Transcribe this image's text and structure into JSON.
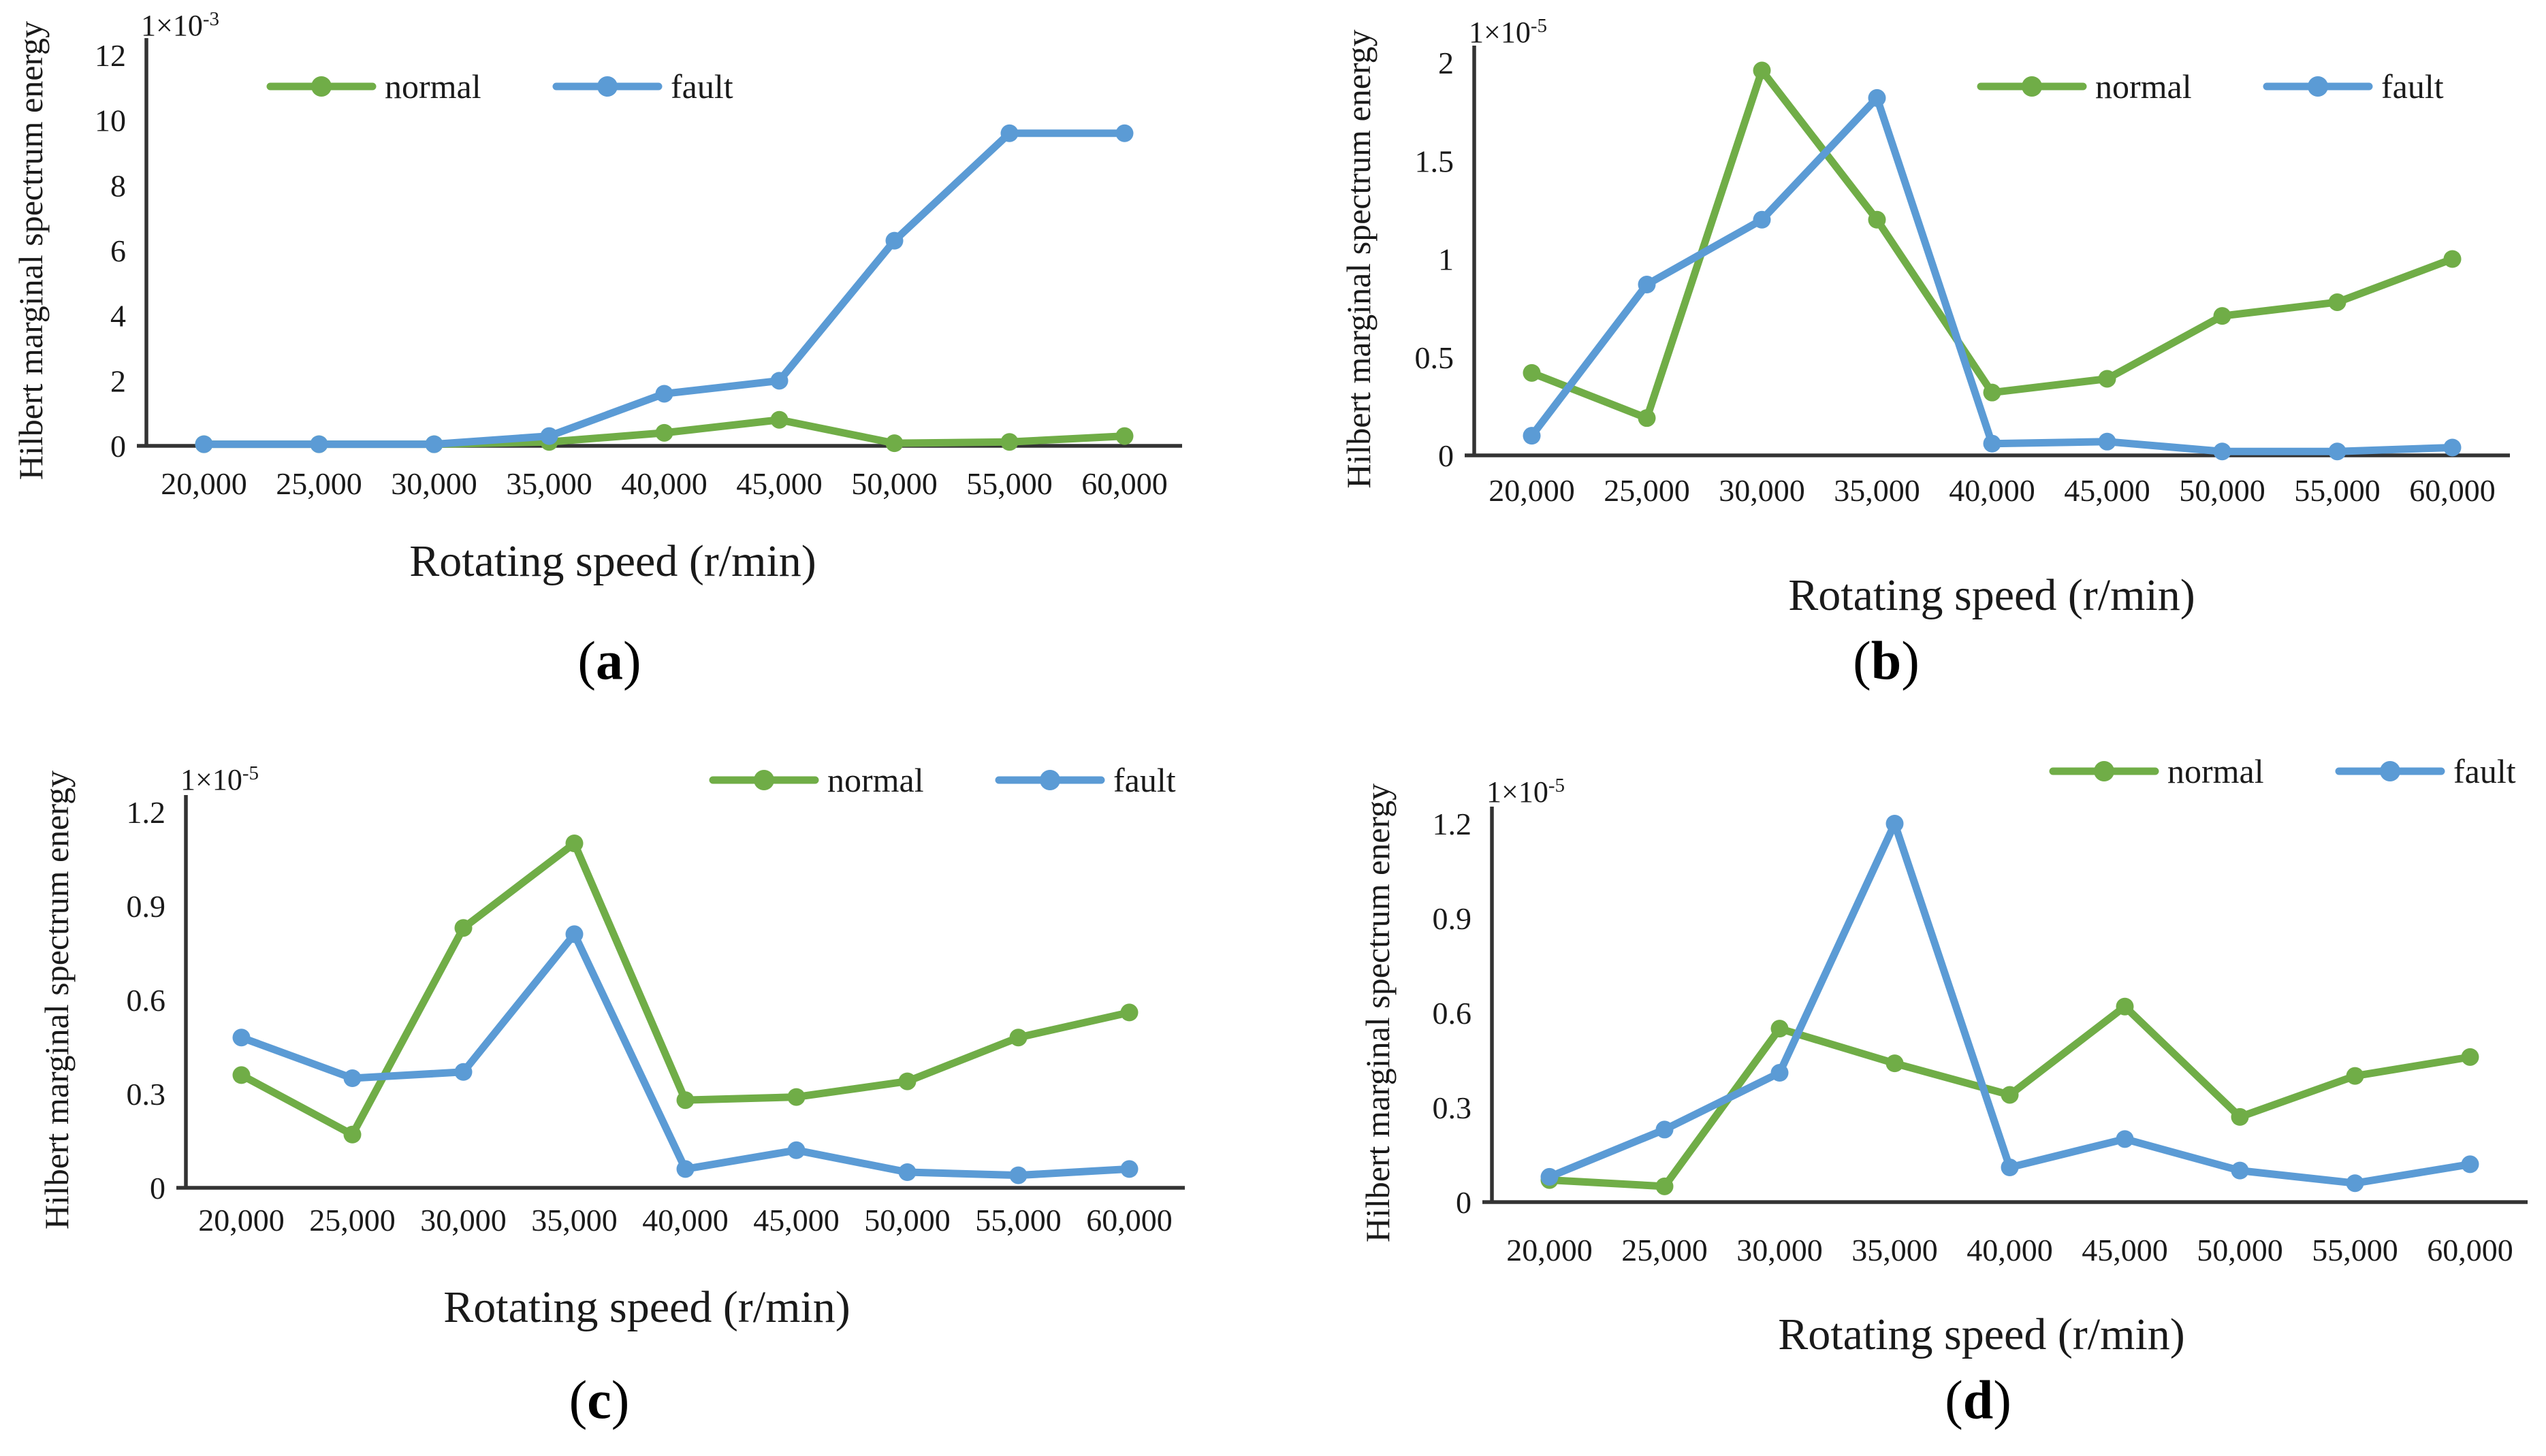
{
  "figure": {
    "background": "#ffffff",
    "description_labels": [
      "(a)",
      "(b)",
      "(c)",
      "(d)"
    ]
  },
  "colors": {
    "normal": "#70AD47",
    "fault": "#5B9BD5",
    "axis": "#333333",
    "text": "#1a1a1a"
  },
  "chart_data": [
    {
      "type": "line",
      "panel_label": {
        "open": "(",
        "letter": "a",
        "close": ")"
      },
      "ylabel": "Hilbert marginal spectrum energy",
      "xlabel": "Rotating speed (r/min)",
      "scale_label": {
        "base": "1×10",
        "exponent": "-3"
      },
      "categories": [
        "20,000",
        "25,000",
        "30,000",
        "35,000",
        "40,000",
        "45,000",
        "50,000",
        "55,000",
        "60,000"
      ],
      "ylim": [
        0,
        12
      ],
      "yticks": [
        0,
        2,
        4,
        6,
        8,
        10,
        12
      ],
      "ytick_labels": [
        "0",
        "2",
        "4",
        "6",
        "8",
        "10",
        "12"
      ],
      "grid": false,
      "legend_position": "top-left-inside",
      "legend_labels": [
        "normal",
        "fault"
      ],
      "series": [
        {
          "name": "normal",
          "color": "#70AD47",
          "values": [
            0.05,
            0.05,
            0.05,
            0.12,
            0.4,
            0.8,
            0.08,
            0.12,
            0.3
          ]
        },
        {
          "name": "fault",
          "color": "#5B9BD5",
          "values": [
            0.05,
            0.05,
            0.05,
            0.3,
            1.6,
            2.0,
            6.3,
            9.6,
            9.6
          ]
        }
      ]
    },
    {
      "type": "line",
      "panel_label": {
        "open": "(",
        "letter": "b",
        "close": ")"
      },
      "ylabel": "Hilbert marginal spectrum energy",
      "xlabel": "Rotating speed (r/min)",
      "scale_label": {
        "base": "1×10",
        "exponent": "-5"
      },
      "categories": [
        "20,000",
        "25,000",
        "30,000",
        "35,000",
        "40,000",
        "45,000",
        "50,000",
        "55,000",
        "60,000"
      ],
      "ylim": [
        0,
        2
      ],
      "yticks": [
        0,
        0.5,
        1,
        1.5,
        2
      ],
      "ytick_labels": [
        "0",
        "0.5",
        "1",
        "1.5",
        "2"
      ],
      "grid": false,
      "legend_position": "top-right-inside",
      "legend_labels": [
        "normal",
        "fault"
      ],
      "series": [
        {
          "name": "normal",
          "color": "#70AD47",
          "values": [
            0.42,
            0.19,
            1.96,
            1.2,
            0.32,
            0.39,
            0.71,
            0.78,
            1.0
          ]
        },
        {
          "name": "fault",
          "color": "#5B9BD5",
          "values": [
            0.1,
            0.87,
            1.2,
            1.82,
            0.06,
            0.07,
            0.02,
            0.02,
            0.04
          ]
        }
      ]
    },
    {
      "type": "line",
      "panel_label": {
        "open": "(",
        "letter": "c",
        "close": ")"
      },
      "ylabel": "Hilbert marginal spectrum energy",
      "xlabel": "Rotating speed (r/min)",
      "scale_label": {
        "base": "1×10",
        "exponent": "-5"
      },
      "categories": [
        "20,000",
        "25,000",
        "30,000",
        "35,000",
        "40,000",
        "45,000",
        "50,000",
        "55,000",
        "60,000"
      ],
      "ylim": [
        0,
        1.2
      ],
      "yticks": [
        0,
        0.3,
        0.6,
        0.9,
        1.2
      ],
      "ytick_labels": [
        "0",
        "0.3",
        "0.6",
        "0.9",
        "1.2"
      ],
      "grid": false,
      "legend_position": "top-right-inside",
      "legend_labels": [
        "normal",
        "fault"
      ],
      "series": [
        {
          "name": "normal",
          "color": "#70AD47",
          "values": [
            0.36,
            0.17,
            0.83,
            1.1,
            0.28,
            0.29,
            0.34,
            0.48,
            0.56
          ]
        },
        {
          "name": "fault",
          "color": "#5B9BD5",
          "values": [
            0.48,
            0.35,
            0.37,
            0.81,
            0.06,
            0.12,
            0.05,
            0.04,
            0.06
          ]
        }
      ]
    },
    {
      "type": "line",
      "panel_label": {
        "open": "(",
        "letter": "d",
        "close": ")"
      },
      "ylabel": "Hilbert marginal spectrum energy",
      "xlabel": "Rotating speed (r/min)",
      "scale_label": {
        "base": "1×10",
        "exponent": "-5"
      },
      "categories": [
        "20,000",
        "25,000",
        "30,000",
        "35,000",
        "40,000",
        "45,000",
        "50,000",
        "55,000",
        "60,000"
      ],
      "ylim": [
        0,
        1.2
      ],
      "yticks": [
        0,
        0.3,
        0.6,
        0.9,
        1.2
      ],
      "ytick_labels": [
        "0",
        "0.3",
        "0.6",
        "0.9",
        "1.2"
      ],
      "grid": false,
      "legend_position": "top-right-inside",
      "legend_labels": [
        "normal",
        "fault"
      ],
      "series": [
        {
          "name": "normal",
          "color": "#70AD47",
          "values": [
            0.07,
            0.05,
            0.55,
            0.44,
            0.34,
            0.62,
            0.27,
            0.4,
            0.46
          ]
        },
        {
          "name": "fault",
          "color": "#5B9BD5",
          "values": [
            0.08,
            0.23,
            0.41,
            1.2,
            0.11,
            0.2,
            0.1,
            0.06,
            0.12
          ]
        }
      ]
    }
  ]
}
